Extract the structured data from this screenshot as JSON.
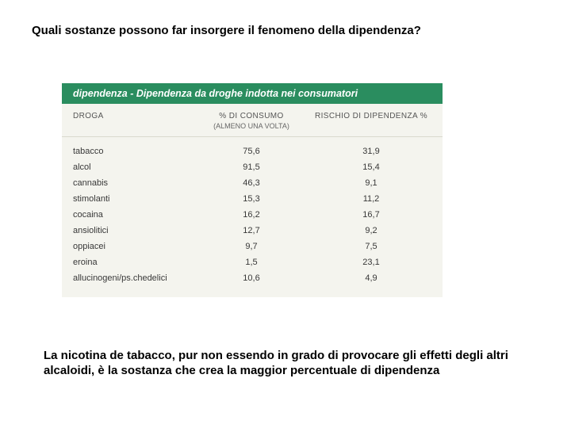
{
  "heading": "Quali sostanze possono far insorgere il fenomeno della dipendenza?",
  "table": {
    "header_bar": "dipendenza - Dipendenza da droghe indotta nei consumatori",
    "columns": {
      "c1": "DROGA",
      "c2": "% DI CONSUMO",
      "c2_sub": "(ALMENO UNA VOLTA)",
      "c3": "RISCHIO DI DIPENDENZA %"
    },
    "rows": [
      {
        "name": "tabacco",
        "consumo": "75,6",
        "rischio": "31,9"
      },
      {
        "name": "alcol",
        "consumo": "91,5",
        "rischio": "15,4"
      },
      {
        "name": "cannabis",
        "consumo": "46,3",
        "rischio": "9,1"
      },
      {
        "name": "stimolanti",
        "consumo": "15,3",
        "rischio": "11,2"
      },
      {
        "name": "cocaina",
        "consumo": "16,2",
        "rischio": "16,7"
      },
      {
        "name": "ansiolitici",
        "consumo": "12,7",
        "rischio": "9,2"
      },
      {
        "name": "oppiacei",
        "consumo": "9,7",
        "rischio": "7,5"
      },
      {
        "name": "eroina",
        "consumo": "1,5",
        "rischio": "23,1"
      },
      {
        "name": "allucinogeni/ps.chedelici",
        "consumo": "10,6",
        "rischio": "4,9"
      }
    ],
    "colors": {
      "header_bg": "#2a8d5f",
      "header_text": "#ffffff",
      "body_bg": "#f4f4ee",
      "text": "#383838",
      "subtext": "#666666"
    }
  },
  "caption": "La nicotina de tabacco, pur non essendo in grado di provocare gli effetti degli altri alcaloidi, è la sostanza che crea la maggior percentuale di dipendenza"
}
